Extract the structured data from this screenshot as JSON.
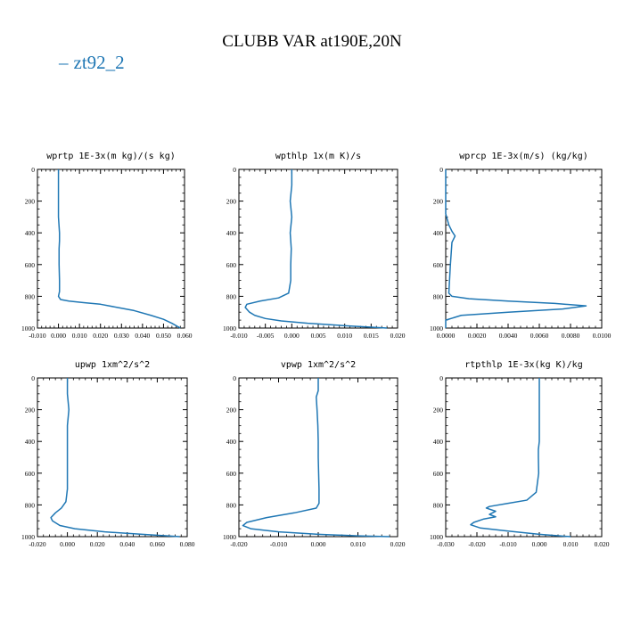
{
  "title": "CLUBB VAR at190E,20N",
  "legend": {
    "label": "zt92_2",
    "color": "#1f77b4"
  },
  "chart_data": [
    {
      "type": "line",
      "title": "wprtp  1E-3x(m kg)/(s kg)",
      "xlim": [
        -0.01,
        0.06
      ],
      "xticks": [
        "-0.010",
        "0.000",
        "0.010",
        "0.020",
        "0.030",
        "0.040",
        "0.050",
        "0.060"
      ],
      "ylim": [
        0,
        1000
      ],
      "yticks": [
        "0",
        "200",
        "400",
        "600",
        "800",
        "1000"
      ],
      "y_reversed": true,
      "series": [
        {
          "values_x": [
            0.0,
            0.0,
            0.0,
            0.0005,
            0.0005,
            0.0003,
            0.0003,
            0.0005,
            0.0005,
            0.0,
            0.001,
            0.005,
            0.012,
            0.02,
            0.028,
            0.036,
            0.044,
            0.05,
            0.054,
            0.058
          ],
          "values_y": [
            0,
            200,
            300,
            400,
            450,
            500,
            600,
            700,
            770,
            800,
            820,
            830,
            840,
            850,
            870,
            890,
            920,
            945,
            970,
            1000
          ]
        }
      ]
    },
    {
      "type": "line",
      "title": "wpthlp  1x(m K)/s",
      "xlim": [
        -0.01,
        0.02
      ],
      "xticks": [
        "-0.010",
        "-0.005",
        "0.000",
        "0.005",
        "0.010",
        "0.015",
        "0.020"
      ],
      "ylim": [
        0,
        1000
      ],
      "yticks": [
        "0",
        "200",
        "400",
        "600",
        "800",
        "1000"
      ],
      "y_reversed": true,
      "series": [
        {
          "values_x": [
            0.0,
            0.0,
            -0.0003,
            0.0,
            -0.0003,
            -0.0001,
            -0.0002,
            -0.0002,
            -0.0006,
            -0.0025,
            -0.006,
            -0.0085,
            -0.0088,
            -0.008,
            -0.007,
            -0.005,
            -0.002,
            0.003,
            0.01,
            0.018
          ],
          "values_y": [
            0,
            100,
            200,
            300,
            400,
            500,
            600,
            700,
            780,
            810,
            830,
            850,
            870,
            900,
            920,
            940,
            955,
            970,
            985,
            1000
          ]
        }
      ]
    },
    {
      "type": "line",
      "title": "wprcp  1E-3x(m/s) (kg/kg)",
      "xlim": [
        0.0,
        0.01
      ],
      "xticks": [
        "0.0000",
        "0.0020",
        "0.0040",
        "0.0060",
        "0.0080",
        "0.0100"
      ],
      "ylim": [
        0,
        1000
      ],
      "yticks": [
        "0",
        "200",
        "400",
        "600",
        "800",
        "1000"
      ],
      "y_reversed": true,
      "series": [
        {
          "values_x": [
            0.0,
            0.0,
            0.0002,
            0.0004,
            0.0006,
            0.0004,
            0.0003,
            0.0002,
            0.0004,
            0.0015,
            0.004,
            0.007,
            0.009,
            0.0075,
            0.004,
            0.001,
            0.0,
            0.0
          ],
          "values_y": [
            0,
            280,
            350,
            390,
            420,
            460,
            600,
            780,
            800,
            815,
            830,
            845,
            860,
            880,
            900,
            920,
            950,
            1000
          ]
        }
      ]
    },
    {
      "type": "line",
      "title": "upwp  1xm^2/s^2",
      "xlim": [
        -0.02,
        0.08
      ],
      "xticks": [
        "-0.020",
        "0.000",
        "0.020",
        "0.040",
        "0.060",
        "0.080"
      ],
      "ylim": [
        0,
        1000
      ],
      "yticks": [
        "0",
        "200",
        "400",
        "600",
        "800",
        "1000"
      ],
      "y_reversed": true,
      "series": [
        {
          "values_x": [
            0.0,
            0.0,
            0.001,
            0.0,
            0.0,
            0.0,
            0.0,
            0.0,
            -0.001,
            -0.004,
            -0.008,
            -0.011,
            -0.01,
            -0.005,
            0.005,
            0.025,
            0.05,
            0.075
          ],
          "values_y": [
            0,
            100,
            200,
            300,
            400,
            500,
            600,
            700,
            780,
            820,
            850,
            880,
            900,
            930,
            950,
            970,
            985,
            1000
          ]
        }
      ]
    },
    {
      "type": "line",
      "title": "vpwp  1xm^2/s^2",
      "xlim": [
        -0.02,
        0.02
      ],
      "xticks": [
        "-0.020",
        "-0.010",
        "0.000",
        "0.010",
        "0.020"
      ],
      "ylim": [
        0,
        1000
      ],
      "yticks": [
        "0",
        "200",
        "400",
        "600",
        "800",
        "1000"
      ],
      "y_reversed": true,
      "series": [
        {
          "values_x": [
            0.0,
            0.0,
            -0.0005,
            -0.0003,
            -0.0001,
            0.0,
            0.0,
            0.0001,
            0.0002,
            0.0002,
            -0.0005,
            -0.006,
            -0.013,
            -0.018,
            -0.019,
            -0.017,
            -0.01,
            0.0,
            0.01,
            0.018
          ],
          "values_y": [
            0,
            80,
            120,
            200,
            300,
            400,
            500,
            600,
            700,
            790,
            820,
            850,
            880,
            910,
            930,
            950,
            970,
            985,
            995,
            1000
          ]
        }
      ]
    },
    {
      "type": "line",
      "title": "rtpthlp  1E-3x(kg K)/kg",
      "xlim": [
        -0.03,
        0.02
      ],
      "xticks": [
        "-0.030",
        "-0.020",
        "-0.010",
        "0.000",
        "0.010",
        "0.020"
      ],
      "ylim": [
        0,
        1000
      ],
      "yticks": [
        "0",
        "200",
        "400",
        "600",
        "800",
        "1000"
      ],
      "y_reversed": true,
      "series": [
        {
          "values_x": [
            0.0,
            0.0,
            0.0,
            0.0,
            -0.0003,
            -0.0003,
            -0.0002,
            -0.001,
            -0.004,
            -0.01,
            -0.016,
            -0.017,
            -0.014,
            -0.016,
            -0.014,
            -0.018,
            -0.021,
            -0.022,
            -0.019,
            -0.01,
            0.0,
            0.01
          ],
          "values_y": [
            0,
            200,
            300,
            400,
            450,
            500,
            600,
            720,
            770,
            790,
            810,
            820,
            840,
            860,
            875,
            890,
            910,
            925,
            945,
            965,
            985,
            1000
          ]
        }
      ]
    }
  ]
}
